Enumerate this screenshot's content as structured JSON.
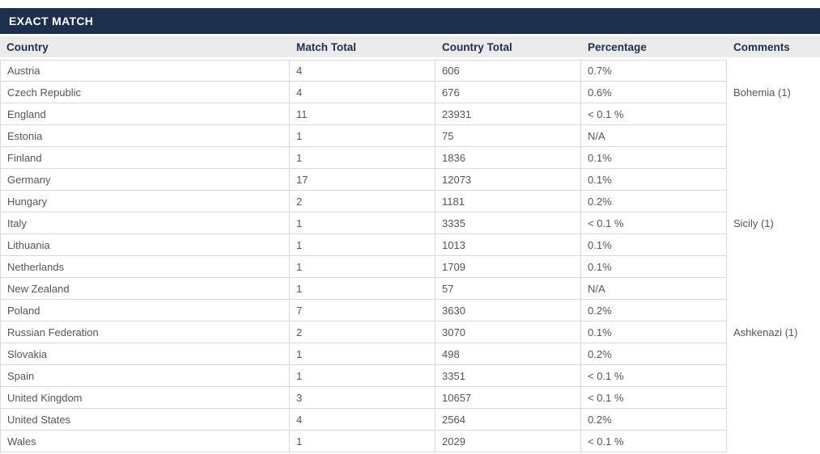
{
  "panel": {
    "title": "EXACT MATCH"
  },
  "table": {
    "columns": [
      "Country",
      "Match Total",
      "Country Total",
      "Percentage",
      "Comments"
    ],
    "column_keys": [
      "country",
      "match_total",
      "country_total",
      "percentage",
      "comments"
    ],
    "rows": [
      {
        "country": "Austria",
        "match_total": "4",
        "country_total": "606",
        "percentage": "0.7%",
        "comments": ""
      },
      {
        "country": "Czech Republic",
        "match_total": "4",
        "country_total": "676",
        "percentage": "0.6%",
        "comments": "Bohemia (1)"
      },
      {
        "country": "England",
        "match_total": "11",
        "country_total": "23931",
        "percentage": "< 0.1 %",
        "comments": ""
      },
      {
        "country": "Estonia",
        "match_total": "1",
        "country_total": "75",
        "percentage": "N/A",
        "comments": ""
      },
      {
        "country": "Finland",
        "match_total": "1",
        "country_total": "1836",
        "percentage": "0.1%",
        "comments": ""
      },
      {
        "country": "Germany",
        "match_total": "17",
        "country_total": "12073",
        "percentage": "0.1%",
        "comments": ""
      },
      {
        "country": "Hungary",
        "match_total": "2",
        "country_total": "1181",
        "percentage": "0.2%",
        "comments": ""
      },
      {
        "country": "Italy",
        "match_total": "1",
        "country_total": "3335",
        "percentage": "< 0.1 %",
        "comments": "Sicily (1)"
      },
      {
        "country": "Lithuania",
        "match_total": "1",
        "country_total": "1013",
        "percentage": "0.1%",
        "comments": ""
      },
      {
        "country": "Netherlands",
        "match_total": "1",
        "country_total": "1709",
        "percentage": "0.1%",
        "comments": ""
      },
      {
        "country": "New Zealand",
        "match_total": "1",
        "country_total": "57",
        "percentage": "N/A",
        "comments": ""
      },
      {
        "country": "Poland",
        "match_total": "7",
        "country_total": "3630",
        "percentage": "0.2%",
        "comments": ""
      },
      {
        "country": "Russian Federation",
        "match_total": "2",
        "country_total": "3070",
        "percentage": "0.1%",
        "comments": "Ashkenazi (1)"
      },
      {
        "country": "Slovakia",
        "match_total": "1",
        "country_total": "498",
        "percentage": "0.2%",
        "comments": ""
      },
      {
        "country": "Spain",
        "match_total": "1",
        "country_total": "3351",
        "percentage": "< 0.1 %",
        "comments": ""
      },
      {
        "country": "United Kingdom",
        "match_total": "3",
        "country_total": "10657",
        "percentage": "< 0.1 %",
        "comments": ""
      },
      {
        "country": "United States",
        "match_total": "4",
        "country_total": "2564",
        "percentage": "0.2%",
        "comments": ""
      },
      {
        "country": "Wales",
        "match_total": "1",
        "country_total": "2029",
        "percentage": "< 0.1 %",
        "comments": ""
      }
    ]
  },
  "colors": {
    "title_bar_bg": "#1c304e",
    "title_text": "#ffffff",
    "header_bg": "#ebebeb",
    "header_text": "#1c304e",
    "body_text": "#555555",
    "border": "#d9d9d9"
  }
}
